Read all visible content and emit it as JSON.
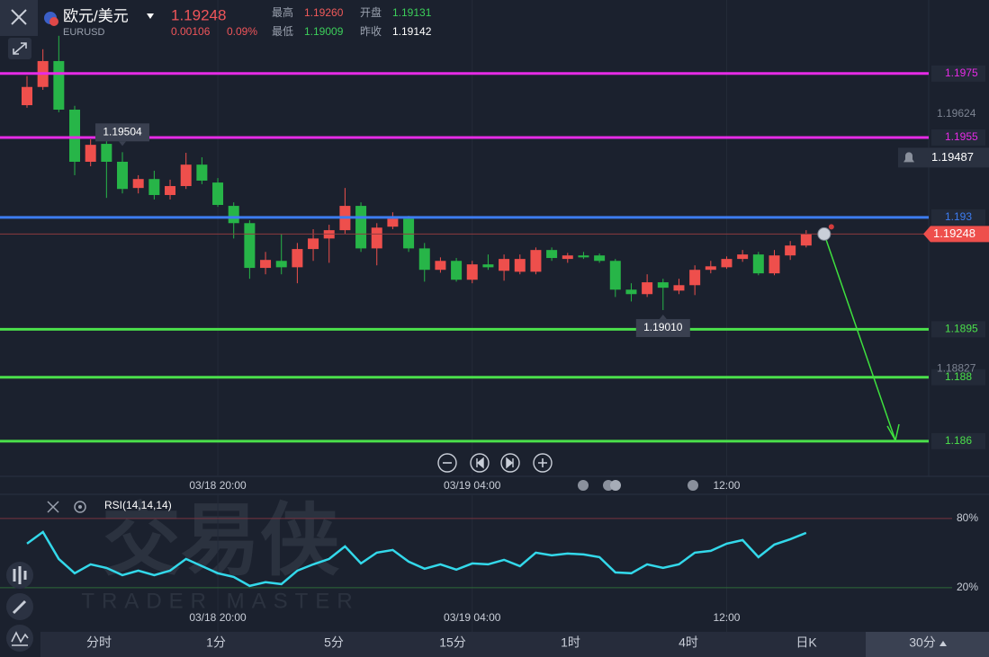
{
  "header": {
    "symbol": "欧元/美元",
    "code": "EURUSD",
    "price": "1.19248",
    "change": "0.00106",
    "change_pct": "0.09%",
    "stats": [
      {
        "label": "最高",
        "value": "1.19260",
        "color": "#f05a5a"
      },
      {
        "label": "开盘",
        "value": "1.19131",
        "color": "#3ccf5a"
      },
      {
        "label": "最低",
        "value": "1.19009",
        "color": "#3ccf5a"
      },
      {
        "label": "昨收",
        "value": "1.19142",
        "color": "#ffffff"
      }
    ]
  },
  "watermark": {
    "title": "交易侠",
    "subtitle": "TRADER MASTER"
  },
  "chart_data": [
    {
      "type": "candlestick",
      "categories": [
        null,
        null,
        null,
        null,
        null,
        null,
        null,
        null,
        null,
        null,
        null,
        null,
        "03/18 20:00",
        null,
        null,
        null,
        null,
        null,
        null,
        null,
        null,
        null,
        null,
        null,
        null,
        null,
        null,
        null,
        "03/19 04:00",
        null,
        null,
        null,
        null,
        null,
        null,
        null,
        null,
        null,
        null,
        null,
        null,
        null,
        null,
        null,
        "12:00",
        null,
        null,
        null,
        null,
        null
      ],
      "open": [
        1.19651,
        1.19708,
        1.19789,
        1.19637,
        1.19474,
        1.1953,
        1.19474,
        1.19392,
        1.1942,
        1.1937,
        1.19398,
        1.19465,
        1.19409,
        1.19336,
        1.19282,
        1.19142,
        1.19164,
        1.19144,
        1.19201,
        1.19234,
        1.1926,
        1.19336,
        1.19203,
        1.19271,
        1.19296,
        1.19203,
        1.19136,
        1.19164,
        1.19105,
        1.19153,
        1.19133,
        1.1913,
        1.1913,
        1.19198,
        1.1917,
        1.19181,
        1.19181,
        1.19164,
        1.19074,
        1.1906,
        1.19097,
        1.19071,
        1.19088,
        1.19136,
        1.19144,
        1.1917,
        1.19184,
        1.19125,
        1.19181,
        1.19212
      ],
      "high": [
        1.19742,
        1.19826,
        1.19868,
        1.19649,
        1.19544,
        1.19558,
        1.19504,
        1.19432,
        1.19446,
        1.19418,
        1.19502,
        1.19488,
        1.19423,
        1.19347,
        1.19291,
        1.19192,
        1.19249,
        1.1922,
        1.19263,
        1.19277,
        1.19392,
        1.19347,
        1.19282,
        1.19316,
        1.19305,
        1.1922,
        1.19175,
        1.19173,
        1.19164,
        1.19184,
        1.19184,
        1.19184,
        1.19206,
        1.19206,
        1.19189,
        1.19192,
        1.19187,
        1.1917,
        1.19094,
        1.19122,
        1.19108,
        1.19108,
        1.1915,
        1.19164,
        1.19178,
        1.19198,
        1.19192,
        1.19198,
        1.19226,
        1.1926
      ],
      "low": [
        1.19643,
        1.19699,
        1.19629,
        1.19432,
        1.1946,
        1.19361,
        1.19375,
        1.19375,
        1.19356,
        1.19356,
        1.19389,
        1.19404,
        1.19333,
        1.19234,
        1.19108,
        1.19122,
        1.19122,
        1.19094,
        1.19164,
        1.19158,
        1.19249,
        1.19192,
        1.1915,
        1.19263,
        1.19192,
        1.19099,
        1.19127,
        1.19099,
        1.19094,
        1.19136,
        1.19102,
        1.19122,
        1.19122,
        1.19164,
        1.19158,
        1.1917,
        1.19158,
        1.19051,
        1.19037,
        1.19051,
        1.1901,
        1.1906,
        1.19057,
        1.19125,
        1.19139,
        1.19161,
        1.19119,
        1.19119,
        1.19167,
        1.19206
      ],
      "close": [
        1.19708,
        1.19789,
        1.19637,
        1.19474,
        1.19527,
        1.19474,
        1.19389,
        1.1942,
        1.1937,
        1.19398,
        1.19465,
        1.19415,
        1.19339,
        1.19282,
        1.19142,
        1.19167,
        1.19144,
        1.19201,
        1.19234,
        1.1926,
        1.19336,
        1.19203,
        1.19268,
        1.19296,
        1.19203,
        1.19136,
        1.19164,
        1.19105,
        1.19153,
        1.19144,
        1.1917,
        1.1917,
        1.19198,
        1.19173,
        1.19181,
        1.19175,
        1.19164,
        1.19074,
        1.1906,
        1.19097,
        1.1908,
        1.19088,
        1.19136,
        1.19147,
        1.1917,
        1.19184,
        1.19125,
        1.19181,
        1.19212,
        1.19248
      ],
      "up_color": "#ee4f4c",
      "down_color": "#27b548",
      "ylim": [
        1.1849,
        1.1998
      ],
      "levels": [
        {
          "value": 1.1975,
          "color": "#e62be6"
        },
        {
          "value": 1.1955,
          "color": "#e62be6"
        },
        {
          "value": 1.193,
          "color": "#3d7cf0"
        },
        {
          "value": 1.1895,
          "color": "#4be04b"
        },
        {
          "value": 1.188,
          "color": "#4be04b"
        },
        {
          "value": 1.186,
          "color": "#4be04b"
        }
      ],
      "price_labels": [
        1.19624,
        1.18827
      ],
      "alert_price": 1.19487,
      "last_price": 1.19248,
      "high_marker": 1.19504,
      "low_marker": {
        "value": 1.1901,
        "label": "1.19010"
      }
    },
    {
      "type": "line",
      "title": "RSI(14,14,14)",
      "categories": [
        null,
        null,
        null,
        null,
        null,
        null,
        null,
        null,
        null,
        null,
        null,
        null,
        "03/18 20:00",
        null,
        null,
        null,
        null,
        null,
        null,
        null,
        null,
        null,
        null,
        null,
        null,
        null,
        null,
        null,
        "03/19 04:00",
        null,
        null,
        null,
        null,
        null,
        null,
        null,
        null,
        null,
        null,
        null,
        null,
        null,
        null,
        null,
        "12:00",
        null,
        null,
        null,
        null,
        null
      ],
      "values": [
        58.2,
        68.3,
        44.9,
        32.5,
        40.2,
        37.1,
        30.9,
        34.8,
        30.9,
        34.8,
        44.9,
        38.7,
        32.5,
        29.3,
        21.5,
        24.7,
        23.1,
        34.8,
        40.2,
        44.9,
        55.8,
        41,
        50.4,
        52.7,
        42.6,
        36.4,
        40.2,
        35.6,
        41,
        40.2,
        44.1,
        38.7,
        50.4,
        48,
        49.6,
        48.8,
        46.5,
        33.2,
        32.5,
        40.2,
        37.1,
        40.2,
        50.4,
        51.9,
        58.2,
        61.3,
        46.5,
        57.4,
        62.1,
        67.5
      ],
      "color": "#33d8ea",
      "ylim": [
        -16,
        101
      ],
      "yticks": [
        {
          "value": 80,
          "label": "80%",
          "color": "#7a3440"
        },
        {
          "value": 20,
          "label": "20%",
          "color": "#2e6a38"
        }
      ]
    }
  ],
  "tabs": [
    {
      "label": "分时"
    },
    {
      "label": "1分"
    },
    {
      "label": "5分"
    },
    {
      "label": "15分"
    },
    {
      "label": "1时"
    },
    {
      "label": "4时"
    },
    {
      "label": "日K"
    },
    {
      "label": "30分",
      "selected": true
    }
  ]
}
